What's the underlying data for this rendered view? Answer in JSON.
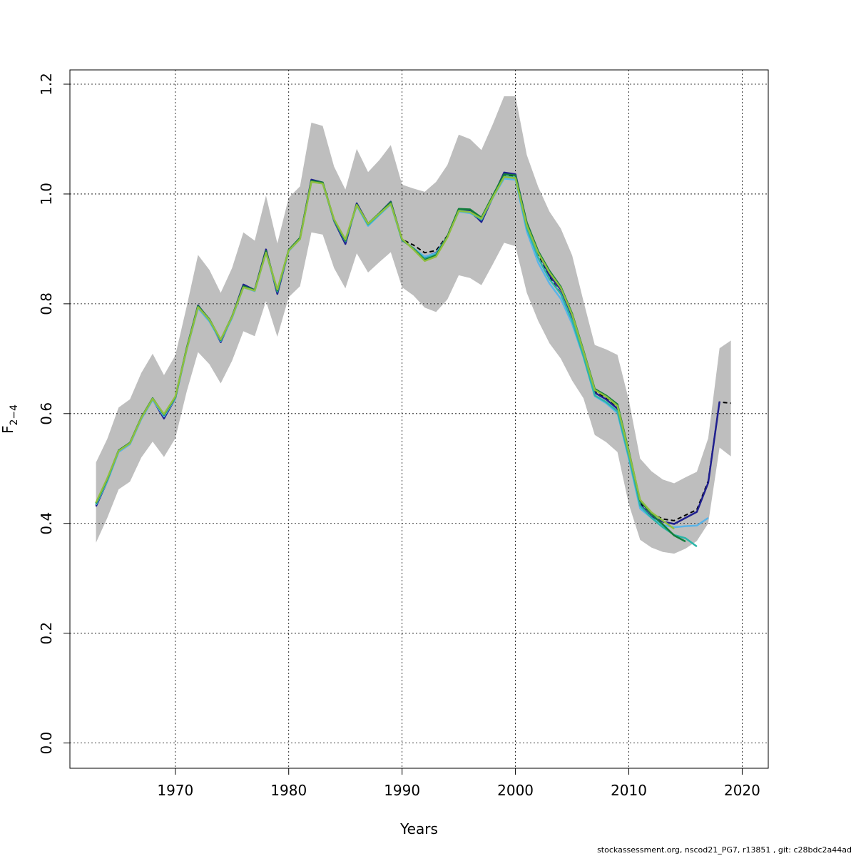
{
  "chart_data": {
    "type": "line",
    "xlabel": "Years",
    "ylabel": {
      "base": "F",
      "subscript": "2−4"
    },
    "xlim": [
      1960.7,
      2022.3
    ],
    "ylim": [
      -0.046,
      1.226
    ],
    "xticks": [
      1970,
      1980,
      1990,
      2000,
      2010,
      2020
    ],
    "yticks": [
      0.0,
      0.2,
      0.4,
      0.6,
      0.8,
      1.0,
      1.2
    ],
    "grid": true,
    "band_color": "#bebebe",
    "band": {
      "x": [
        1963,
        1964,
        1965,
        1966,
        1967,
        1968,
        1969,
        1970,
        1971,
        1972,
        1973,
        1974,
        1975,
        1976,
        1977,
        1978,
        1979,
        1980,
        1981,
        1982,
        1983,
        1984,
        1985,
        1986,
        1987,
        1988,
        1989,
        1990,
        1991,
        1992,
        1993,
        1994,
        1995,
        1996,
        1997,
        1998,
        1999,
        2000,
        2001,
        2002,
        2003,
        2004,
        2005,
        2006,
        2007,
        2008,
        2009,
        2010,
        2011,
        2012,
        2013,
        2014,
        2015,
        2016,
        2017,
        2018,
        2019
      ],
      "lower": [
        0.365,
        0.41,
        0.462,
        0.476,
        0.52,
        0.549,
        0.521,
        0.555,
        0.64,
        0.712,
        0.69,
        0.655,
        0.696,
        0.75,
        0.741,
        0.805,
        0.74,
        0.812,
        0.832,
        0.93,
        0.926,
        0.865,
        0.828,
        0.892,
        0.857,
        0.876,
        0.894,
        0.83,
        0.815,
        0.793,
        0.785,
        0.808,
        0.852,
        0.847,
        0.834,
        0.872,
        0.911,
        0.905,
        0.82,
        0.769,
        0.728,
        0.7,
        0.66,
        0.628,
        0.561,
        0.548,
        0.53,
        0.435,
        0.37,
        0.356,
        0.348,
        0.345,
        0.354,
        0.368,
        0.4,
        0.538,
        0.522
      ],
      "upper": [
        0.511,
        0.554,
        0.611,
        0.626,
        0.674,
        0.709,
        0.67,
        0.706,
        0.795,
        0.889,
        0.862,
        0.82,
        0.865,
        0.93,
        0.915,
        0.997,
        0.91,
        0.993,
        1.014,
        1.13,
        1.124,
        1.05,
        1.008,
        1.082,
        1.04,
        1.062,
        1.089,
        1.017,
        1.01,
        1.004,
        1.022,
        1.053,
        1.108,
        1.1,
        1.08,
        1.127,
        1.178,
        1.178,
        1.071,
        1.013,
        0.968,
        0.937,
        0.888,
        0.805,
        0.725,
        0.717,
        0.707,
        0.625,
        0.518,
        0.495,
        0.48,
        0.473,
        0.484,
        0.494,
        0.555,
        0.719,
        0.733
      ]
    },
    "series": [
      {
        "color": "#000000",
        "dashed": true,
        "x": [
          1963,
          1964,
          1965,
          1966,
          1967,
          1968,
          1969,
          1970,
          1971,
          1972,
          1973,
          1974,
          1975,
          1976,
          1977,
          1978,
          1979,
          1980,
          1981,
          1982,
          1983,
          1984,
          1985,
          1986,
          1987,
          1988,
          1989,
          1990,
          1991,
          1992,
          1993,
          1994,
          1995,
          1996,
          1997,
          1998,
          1999,
          2000,
          2001,
          2002,
          2003,
          2004,
          2005,
          2006,
          2007,
          2008,
          2009,
          2010,
          2011,
          2012,
          2013,
          2014,
          2015,
          2016,
          2017,
          2018,
          2019
        ],
        "values": [
          0.433,
          0.478,
          0.532,
          0.546,
          0.592,
          0.627,
          0.594,
          0.628,
          0.718,
          0.797,
          0.771,
          0.733,
          0.776,
          0.833,
          0.825,
          0.897,
          0.82,
          0.897,
          0.92,
          1.025,
          1.021,
          0.951,
          0.911,
          0.982,
          0.946,
          0.965,
          0.985,
          0.917,
          0.907,
          0.893,
          0.897,
          0.924,
          0.973,
          0.966,
          0.951,
          0.993,
          1.033,
          1.032,
          0.94,
          0.889,
          0.848,
          0.819,
          0.77,
          0.71,
          0.641,
          0.628,
          0.611,
          0.532,
          0.437,
          0.418,
          0.408,
          0.405,
          0.415,
          0.425,
          0.477,
          0.621,
          0.619
        ]
      },
      {
        "color": "#1f1f8f",
        "dashed": false,
        "x": [
          1963,
          1964,
          1965,
          1966,
          1967,
          1968,
          1969,
          1970,
          1971,
          1972,
          1973,
          1974,
          1975,
          1976,
          1977,
          1978,
          1979,
          1980,
          1981,
          1982,
          1983,
          1984,
          1985,
          1986,
          1987,
          1988,
          1989,
          1990,
          1991,
          1992,
          1993,
          1994,
          1995,
          1996,
          1997,
          1998,
          1999,
          2000,
          2001,
          2002,
          2003,
          2004,
          2005,
          2006,
          2007,
          2008,
          2009,
          2010,
          2011,
          2012,
          2013,
          2014,
          2015,
          2016,
          2017,
          2018
        ],
        "values": [
          0.431,
          0.477,
          0.531,
          0.545,
          0.591,
          0.626,
          0.591,
          0.628,
          0.718,
          0.797,
          0.771,
          0.73,
          0.776,
          0.835,
          0.825,
          0.899,
          0.818,
          0.897,
          0.92,
          1.026,
          1.021,
          0.951,
          0.909,
          0.983,
          0.946,
          0.965,
          0.986,
          0.916,
          0.901,
          0.885,
          0.893,
          0.922,
          0.972,
          0.97,
          0.949,
          0.994,
          1.039,
          1.036,
          0.947,
          0.895,
          0.852,
          0.826,
          0.776,
          0.711,
          0.638,
          0.626,
          0.609,
          0.525,
          0.434,
          0.412,
          0.403,
          0.399,
          0.41,
          0.421,
          0.474,
          0.622
        ]
      },
      {
        "color": "#5ab4e8",
        "dashed": false,
        "x": [
          1963,
          1964,
          1965,
          1966,
          1967,
          1968,
          1969,
          1970,
          1971,
          1972,
          1973,
          1974,
          1975,
          1976,
          1977,
          1978,
          1979,
          1980,
          1981,
          1982,
          1983,
          1984,
          1985,
          1986,
          1987,
          1988,
          1989,
          1990,
          1991,
          1992,
          1993,
          1994,
          1995,
          1996,
          1997,
          1998,
          1999,
          2000,
          2001,
          2002,
          2003,
          2004,
          2005,
          2006,
          2007,
          2008,
          2009,
          2010,
          2011,
          2012,
          2013,
          2014,
          2015,
          2016,
          2017
        ],
        "values": [
          0.434,
          0.477,
          0.53,
          0.544,
          0.59,
          0.625,
          0.595,
          0.628,
          0.716,
          0.792,
          0.768,
          0.732,
          0.774,
          0.83,
          0.823,
          0.893,
          0.823,
          0.896,
          0.918,
          1.022,
          1.019,
          0.952,
          0.914,
          0.979,
          0.942,
          0.962,
          0.981,
          0.916,
          0.901,
          0.886,
          0.892,
          0.922,
          0.968,
          0.965,
          0.954,
          0.993,
          1.028,
          1.026,
          0.932,
          0.875,
          0.837,
          0.809,
          0.763,
          0.703,
          0.632,
          0.619,
          0.601,
          0.518,
          0.427,
          0.41,
          0.397,
          0.393,
          0.395,
          0.396,
          0.41
        ]
      },
      {
        "color": "#2bb5a8",
        "dashed": false,
        "x": [
          1963,
          1964,
          1965,
          1966,
          1967,
          1968,
          1969,
          1970,
          1971,
          1972,
          1973,
          1974,
          1975,
          1976,
          1977,
          1978,
          1979,
          1980,
          1981,
          1982,
          1983,
          1984,
          1985,
          1986,
          1987,
          1988,
          1989,
          1990,
          1991,
          1992,
          1993,
          1994,
          1995,
          1996,
          1997,
          1998,
          1999,
          2000,
          2001,
          2002,
          2003,
          2004,
          2005,
          2006,
          2007,
          2008,
          2009,
          2010,
          2011,
          2012,
          2013,
          2014,
          2015,
          2016
        ],
        "values": [
          0.435,
          0.479,
          0.532,
          0.546,
          0.592,
          0.627,
          0.597,
          0.629,
          0.718,
          0.795,
          0.77,
          0.733,
          0.776,
          0.831,
          0.824,
          0.895,
          0.822,
          0.897,
          0.919,
          1.023,
          1.02,
          0.952,
          0.914,
          0.98,
          0.944,
          0.963,
          0.983,
          0.916,
          0.901,
          0.882,
          0.89,
          0.922,
          0.97,
          0.967,
          0.953,
          0.994,
          1.032,
          1.03,
          0.938,
          0.884,
          0.845,
          0.818,
          0.769,
          0.705,
          0.633,
          0.621,
          0.604,
          0.522,
          0.432,
          0.41,
          0.393,
          0.379,
          0.373,
          0.358
        ]
      },
      {
        "color": "#137e3a",
        "dashed": false,
        "x": [
          1963,
          1964,
          1965,
          1966,
          1967,
          1968,
          1969,
          1970,
          1971,
          1972,
          1973,
          1974,
          1975,
          1976,
          1977,
          1978,
          1979,
          1980,
          1981,
          1982,
          1983,
          1984,
          1985,
          1986,
          1987,
          1988,
          1989,
          1990,
          1991,
          1992,
          1993,
          1994,
          1995,
          1996,
          1997,
          1998,
          1999,
          2000,
          2001,
          2002,
          2003,
          2004,
          2005,
          2006,
          2007,
          2008,
          2009,
          2010,
          2011,
          2012,
          2013,
          2014,
          2015
        ],
        "values": [
          0.437,
          0.481,
          0.533,
          0.547,
          0.593,
          0.628,
          0.598,
          0.63,
          0.719,
          0.796,
          0.772,
          0.734,
          0.777,
          0.832,
          0.825,
          0.896,
          0.824,
          0.898,
          0.92,
          1.024,
          1.021,
          0.953,
          0.915,
          0.981,
          0.946,
          0.965,
          0.985,
          0.917,
          0.9,
          0.88,
          0.888,
          0.923,
          0.973,
          0.972,
          0.957,
          0.997,
          1.036,
          1.034,
          0.948,
          0.896,
          0.86,
          0.831,
          0.782,
          0.715,
          0.645,
          0.633,
          0.617,
          0.532,
          0.441,
          0.417,
          0.398,
          0.378,
          0.367
        ]
      },
      {
        "color": "#8fbf3f",
        "dashed": false,
        "x": [
          1963,
          1964,
          1965,
          1966,
          1967,
          1968,
          1969,
          1970,
          1971,
          1972,
          1973,
          1974,
          1975,
          1976,
          1977,
          1978,
          1979,
          1980,
          1981,
          1982,
          1983,
          1984,
          1985,
          1986,
          1987,
          1988,
          1989,
          1990,
          1991,
          1992,
          1993,
          1994,
          1995,
          1996,
          1997,
          1998,
          1999,
          2000,
          2001,
          2002,
          2003,
          2004,
          2005,
          2006,
          2007,
          2008,
          2009,
          2010,
          2011,
          2012,
          2013,
          2014
        ],
        "values": [
          0.438,
          0.482,
          0.532,
          0.546,
          0.592,
          0.627,
          0.599,
          0.631,
          0.717,
          0.794,
          0.771,
          0.735,
          0.776,
          0.83,
          0.824,
          0.893,
          0.826,
          0.897,
          0.918,
          1.022,
          1.019,
          0.954,
          0.917,
          0.98,
          0.946,
          0.964,
          0.982,
          0.918,
          0.899,
          0.878,
          0.886,
          0.921,
          0.969,
          0.967,
          0.955,
          0.994,
          1.031,
          1.029,
          0.943,
          0.893,
          0.857,
          0.829,
          0.78,
          0.713,
          0.643,
          0.631,
          0.614,
          0.53,
          0.443,
          0.42,
          0.405,
          0.39
        ]
      }
    ]
  },
  "footer": "stockassessment.org, nscod21_PG7, r13851 , git: c28bdc2a44ad"
}
